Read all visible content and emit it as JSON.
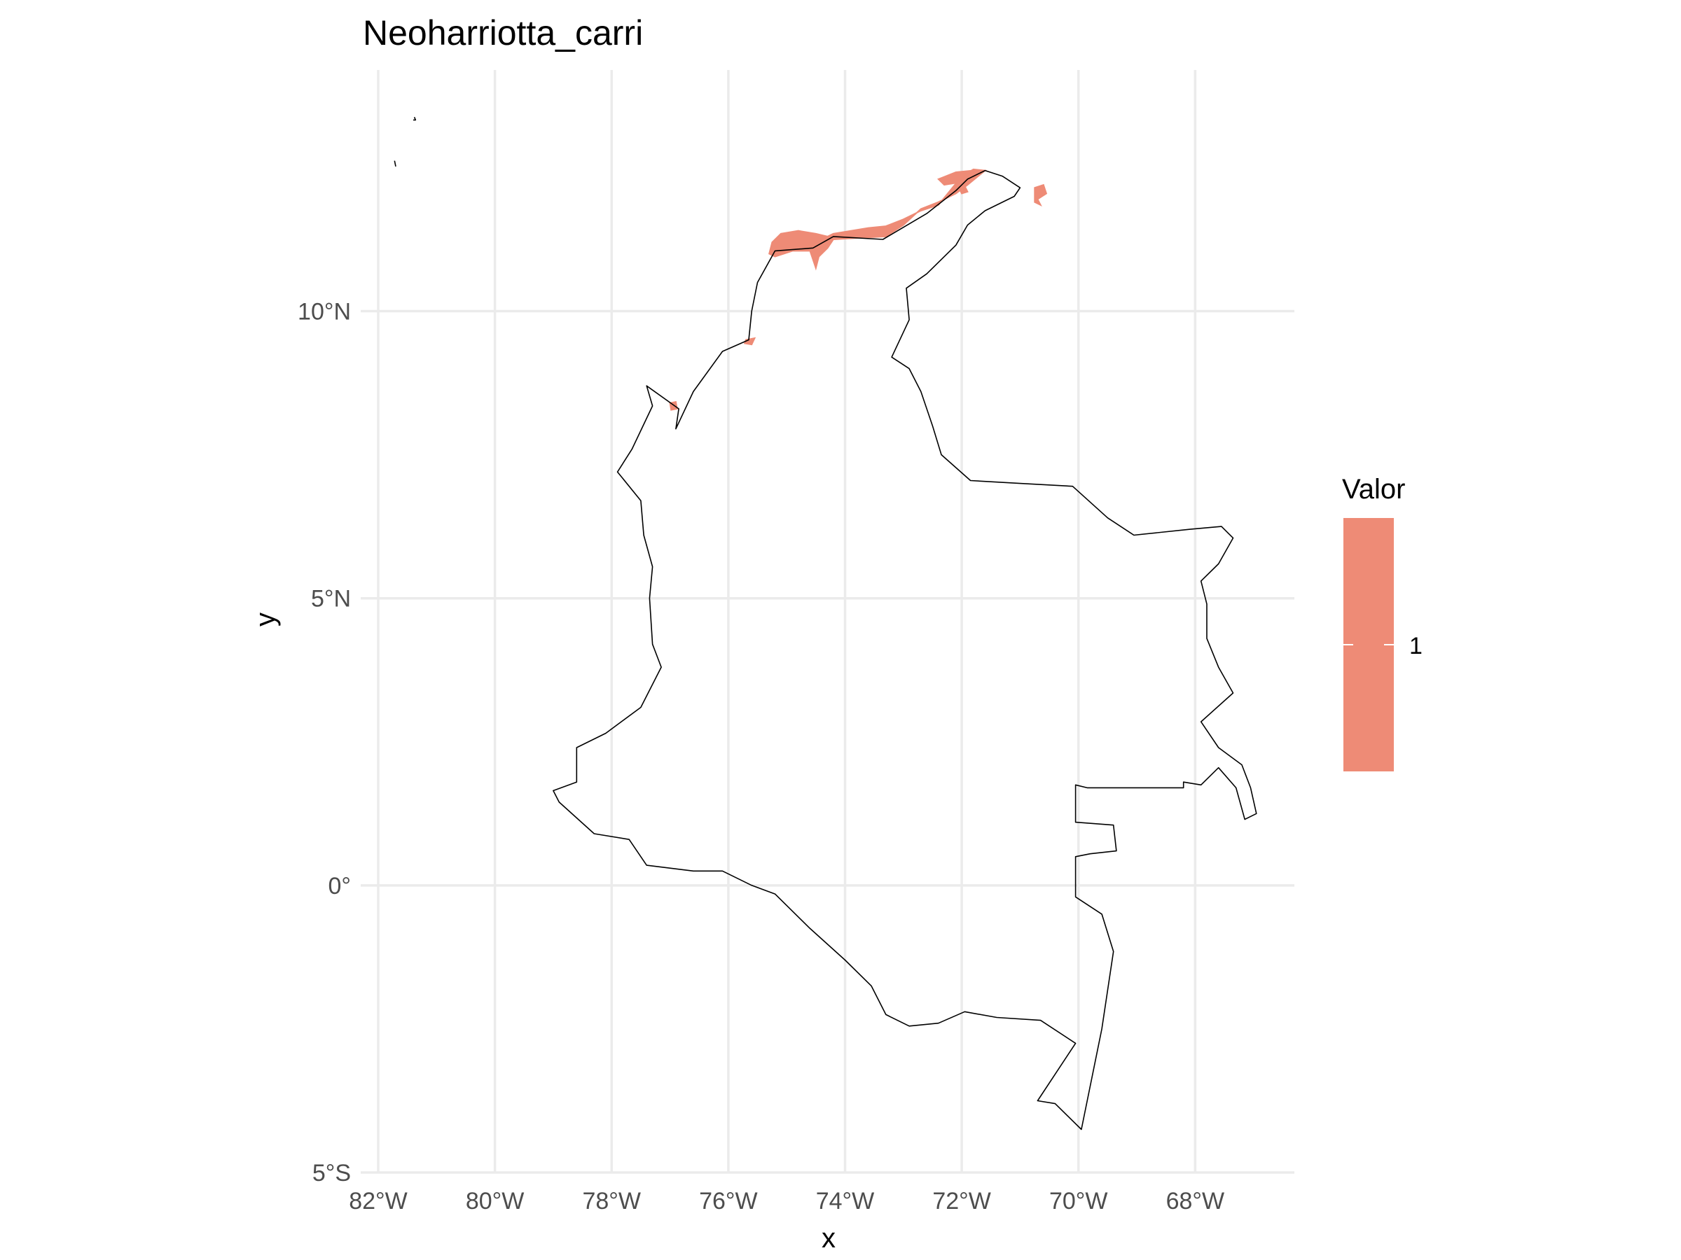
{
  "title": "Neoharriotta_carri",
  "xlabel": "x",
  "ylabel": "y",
  "colors": {
    "presence": "#ee8b76",
    "border": "#000000",
    "grid": "#ebebeb"
  },
  "legend": {
    "title": "Valor",
    "label": "1"
  },
  "chart_data": {
    "type": "heatmap",
    "title": "Neoharriotta_carri",
    "xlabel": "x",
    "ylabel": "y",
    "xlim": [
      -82.3,
      -66.3
    ],
    "ylim": [
      -5.0,
      14.2
    ],
    "x_ticks": [
      -82,
      -80,
      -78,
      -76,
      -74,
      -72,
      -70,
      -68
    ],
    "x_tick_labels": [
      "82°W",
      "80°W",
      "78°W",
      "76°W",
      "74°W",
      "72°W",
      "70°W",
      "68°W"
    ],
    "y_ticks": [
      10,
      5,
      0,
      -5
    ],
    "y_tick_labels": [
      "10°N",
      "5°N",
      "0°",
      "5°S"
    ],
    "grid": true,
    "legend_placement": "right",
    "legend_title": "Valor",
    "legend_values": [
      1
    ],
    "presence_value": 1,
    "country_outline": [
      [
        -71.3,
        12.35
      ],
      [
        -71.0,
        12.15
      ],
      [
        -71.1,
        12.0
      ],
      [
        -71.6,
        11.75
      ],
      [
        -71.9,
        11.5
      ],
      [
        -72.1,
        11.15
      ],
      [
        -72.6,
        10.65
      ],
      [
        -72.95,
        10.4
      ],
      [
        -72.9,
        9.85
      ],
      [
        -73.2,
        9.2
      ],
      [
        -72.9,
        9.0
      ],
      [
        -72.7,
        8.6
      ],
      [
        -72.5,
        8.0
      ],
      [
        -72.35,
        7.5
      ],
      [
        -71.85,
        7.05
      ],
      [
        -71.0,
        7.0
      ],
      [
        -70.1,
        6.95
      ],
      [
        -69.5,
        6.4
      ],
      [
        -69.05,
        6.1
      ],
      [
        -68.1,
        6.2
      ],
      [
        -67.55,
        6.25
      ],
      [
        -67.35,
        6.05
      ],
      [
        -67.6,
        5.6
      ],
      [
        -67.9,
        5.3
      ],
      [
        -67.8,
        4.9
      ],
      [
        -67.8,
        4.3
      ],
      [
        -67.6,
        3.8
      ],
      [
        -67.35,
        3.35
      ],
      [
        -67.9,
        2.85
      ],
      [
        -67.6,
        2.4
      ],
      [
        -67.2,
        2.1
      ],
      [
        -67.05,
        1.7
      ],
      [
        -66.95,
        1.25
      ],
      [
        -67.15,
        1.15
      ],
      [
        -67.3,
        1.7
      ],
      [
        -67.6,
        2.05
      ],
      [
        -67.9,
        1.75
      ],
      [
        -68.2,
        1.8
      ],
      [
        -68.2,
        1.7
      ],
      [
        -69.3,
        1.7
      ],
      [
        -69.85,
        1.7
      ],
      [
        -70.05,
        1.75
      ],
      [
        -70.05,
        1.1
      ],
      [
        -69.4,
        1.05
      ],
      [
        -69.35,
        0.6
      ],
      [
        -69.8,
        0.55
      ],
      [
        -70.05,
        0.5
      ],
      [
        -70.05,
        -0.2
      ],
      [
        -69.6,
        -0.5
      ],
      [
        -69.4,
        -1.15
      ],
      [
        -69.6,
        -2.5
      ],
      [
        -69.95,
        -4.25
      ],
      [
        -70.4,
        -3.8
      ],
      [
        -70.7,
        -3.75
      ],
      [
        -70.05,
        -2.75
      ],
      [
        -70.65,
        -2.35
      ],
      [
        -71.4,
        -2.3
      ],
      [
        -71.95,
        -2.2
      ],
      [
        -72.4,
        -2.4
      ],
      [
        -72.9,
        -2.45
      ],
      [
        -73.3,
        -2.25
      ],
      [
        -73.55,
        -1.75
      ],
      [
        -74.0,
        -1.3
      ],
      [
        -74.6,
        -0.75
      ],
      [
        -75.2,
        -0.15
      ],
      [
        -75.6,
        0.0
      ],
      [
        -76.1,
        0.25
      ],
      [
        -76.6,
        0.25
      ],
      [
        -77.4,
        0.35
      ],
      [
        -77.7,
        0.8
      ],
      [
        -78.3,
        0.9
      ],
      [
        -78.9,
        1.45
      ],
      [
        -79.0,
        1.65
      ],
      [
        -78.6,
        1.8
      ],
      [
        -78.6,
        2.4
      ],
      [
        -78.1,
        2.65
      ],
      [
        -77.5,
        3.1
      ],
      [
        -77.15,
        3.8
      ],
      [
        -77.3,
        4.2
      ],
      [
        -77.35,
        5.0
      ],
      [
        -77.3,
        5.55
      ],
      [
        -77.45,
        6.1
      ],
      [
        -77.5,
        6.7
      ],
      [
        -77.9,
        7.2
      ],
      [
        -77.65,
        7.6
      ],
      [
        -77.3,
        8.35
      ],
      [
        -77.4,
        8.7
      ],
      [
        -76.85,
        8.3
      ],
      [
        -76.9,
        7.95
      ],
      [
        -76.6,
        8.6
      ],
      [
        -76.1,
        9.3
      ],
      [
        -75.65,
        9.5
      ],
      [
        -75.6,
        10.0
      ],
      [
        -75.5,
        10.5
      ],
      [
        -75.2,
        11.05
      ],
      [
        -74.55,
        11.1
      ],
      [
        -74.2,
        11.3
      ],
      [
        -73.35,
        11.25
      ],
      [
        -72.6,
        11.7
      ],
      [
        -72.1,
        12.1
      ],
      [
        -71.9,
        12.3
      ],
      [
        -71.6,
        12.45
      ],
      [
        -71.3,
        12.35
      ]
    ],
    "islands": [
      [
        [
          -81.72,
          12.62
        ],
        [
          -81.7,
          12.52
        ]
      ],
      [
        [
          -81.38,
          13.38
        ],
        [
          -81.36,
          13.33
        ],
        [
          -81.4,
          13.33
        ]
      ]
    ],
    "presence_regions": [
      [
        [
          -75.3,
          11.0
        ],
        [
          -75.25,
          11.2
        ],
        [
          -75.1,
          11.35
        ],
        [
          -74.8,
          11.4
        ],
        [
          -74.5,
          11.35
        ],
        [
          -74.3,
          11.3
        ],
        [
          -74.2,
          11.35
        ],
        [
          -73.9,
          11.4
        ],
        [
          -73.6,
          11.45
        ],
        [
          -73.3,
          11.48
        ],
        [
          -73.0,
          11.6
        ],
        [
          -72.7,
          11.75
        ],
        [
          -72.4,
          11.85
        ],
        [
          -72.2,
          12.1
        ],
        [
          -72.0,
          12.35
        ],
        [
          -71.8,
          12.47
        ],
        [
          -71.6,
          12.45
        ],
        [
          -71.9,
          12.2
        ],
        [
          -72.1,
          12.05
        ],
        [
          -72.4,
          11.9
        ],
        [
          -72.7,
          11.78
        ],
        [
          -73.0,
          11.5
        ],
        [
          -73.3,
          11.3
        ],
        [
          -73.7,
          11.28
        ],
        [
          -74.2,
          11.25
        ],
        [
          -74.3,
          11.1
        ],
        [
          -74.45,
          10.95
        ],
        [
          -74.5,
          10.75
        ],
        [
          -74.6,
          11.05
        ],
        [
          -74.9,
          11.05
        ],
        [
          -75.2,
          10.95
        ]
      ],
      [
        [
          -72.4,
          12.3
        ],
        [
          -72.1,
          12.42
        ],
        [
          -71.8,
          12.45
        ],
        [
          -71.75,
          12.35
        ],
        [
          -72.0,
          12.25
        ],
        [
          -72.3,
          12.2
        ]
      ],
      [
        [
          -72.05,
          12.15
        ],
        [
          -71.95,
          12.18
        ],
        [
          -71.9,
          12.08
        ],
        [
          -72.0,
          12.05
        ]
      ],
      [
        [
          -70.75,
          12.15
        ],
        [
          -70.6,
          12.2
        ],
        [
          -70.55,
          12.05
        ],
        [
          -70.7,
          11.95
        ],
        [
          -70.65,
          11.85
        ],
        [
          -70.75,
          11.9
        ]
      ],
      [
        [
          -75.7,
          9.5
        ],
        [
          -75.55,
          9.53
        ],
        [
          -75.6,
          9.42
        ],
        [
          -75.72,
          9.44
        ]
      ],
      [
        [
          -77.0,
          8.4
        ],
        [
          -76.9,
          8.42
        ],
        [
          -76.88,
          8.3
        ],
        [
          -76.98,
          8.28
        ]
      ]
    ]
  }
}
